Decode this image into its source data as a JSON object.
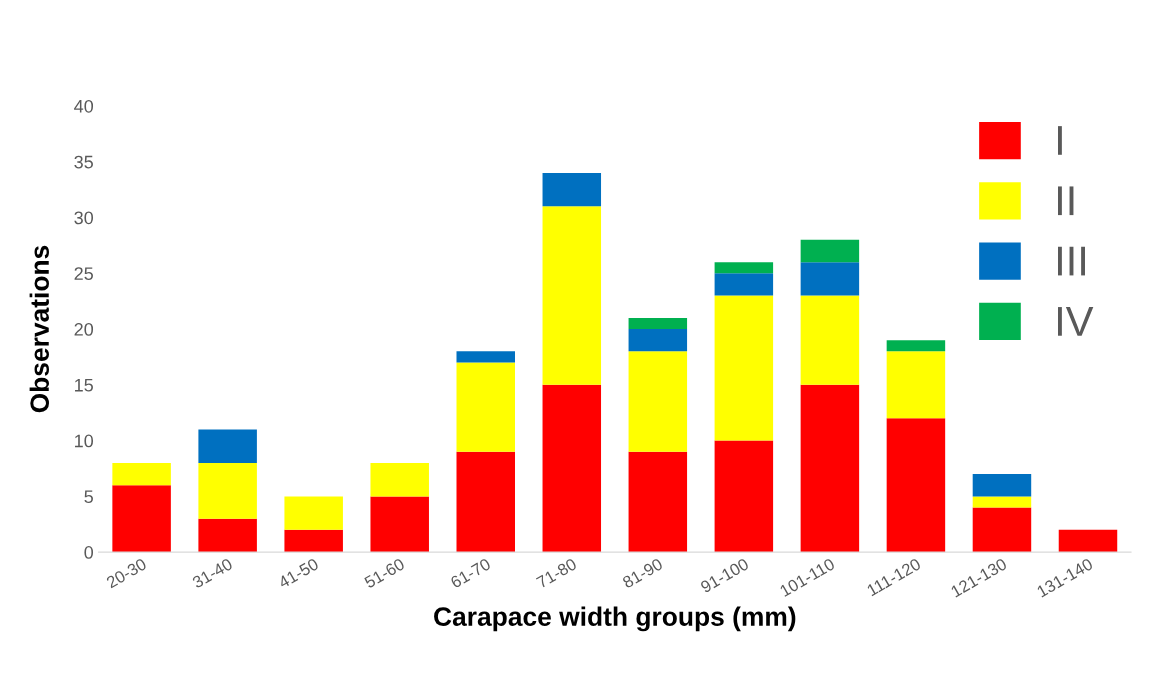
{
  "chart_data": {
    "type": "bar",
    "stacked": true,
    "xlabel": "Carapace width groups (mm)",
    "ylabel": "Observations",
    "categories": [
      "20-30",
      "31-40",
      "41-50",
      "51-60",
      "61-70",
      "71-80",
      "81-90",
      "91-100",
      "101-110",
      "111-120",
      "121-130",
      "131-140"
    ],
    "series": [
      {
        "name": "I",
        "color": "#ff0000",
        "values": [
          6,
          3,
          2,
          5,
          9,
          15,
          9,
          10,
          15,
          12,
          4,
          2
        ]
      },
      {
        "name": "II",
        "color": "#ffff00",
        "values": [
          2,
          5,
          3,
          3,
          8,
          16,
          9,
          13,
          8,
          6,
          1,
          null
        ]
      },
      {
        "name": "III",
        "color": "#0070c0",
        "values": [
          null,
          3,
          null,
          null,
          1,
          3,
          2,
          2,
          3,
          null,
          2,
          null
        ]
      },
      {
        "name": "IV",
        "color": "#00b050",
        "values": [
          null,
          null,
          null,
          null,
          null,
          null,
          1,
          1,
          2,
          1,
          null,
          null
        ]
      }
    ],
    "ylim": [
      0,
      40
    ],
    "yticks": [
      0,
      5,
      10,
      15,
      20,
      25,
      30,
      35,
      40
    ],
    "grid": false,
    "legend": "top right"
  }
}
